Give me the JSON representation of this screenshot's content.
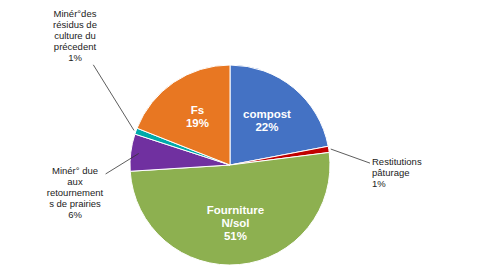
{
  "chart_data": {
    "type": "pie",
    "categories": [
      "compost",
      "Restitutions\npâturage",
      "Fourniture\nN/sol",
      "Minér° due\naux\nretournement\ns de prairies",
      "Minér°des\nrésidus de\nculture du\nprécedent",
      "Fs"
    ],
    "values": [
      22,
      1,
      51,
      6,
      1,
      19
    ],
    "value_labels": [
      "22%",
      "1%",
      "51%",
      "6%",
      "1%",
      "19%"
    ],
    "colors": [
      "#4472C4",
      "#C00000",
      "#8DB050",
      "#7030A0",
      "#00AAAA",
      "#E87722"
    ],
    "data_labels": true
  }
}
